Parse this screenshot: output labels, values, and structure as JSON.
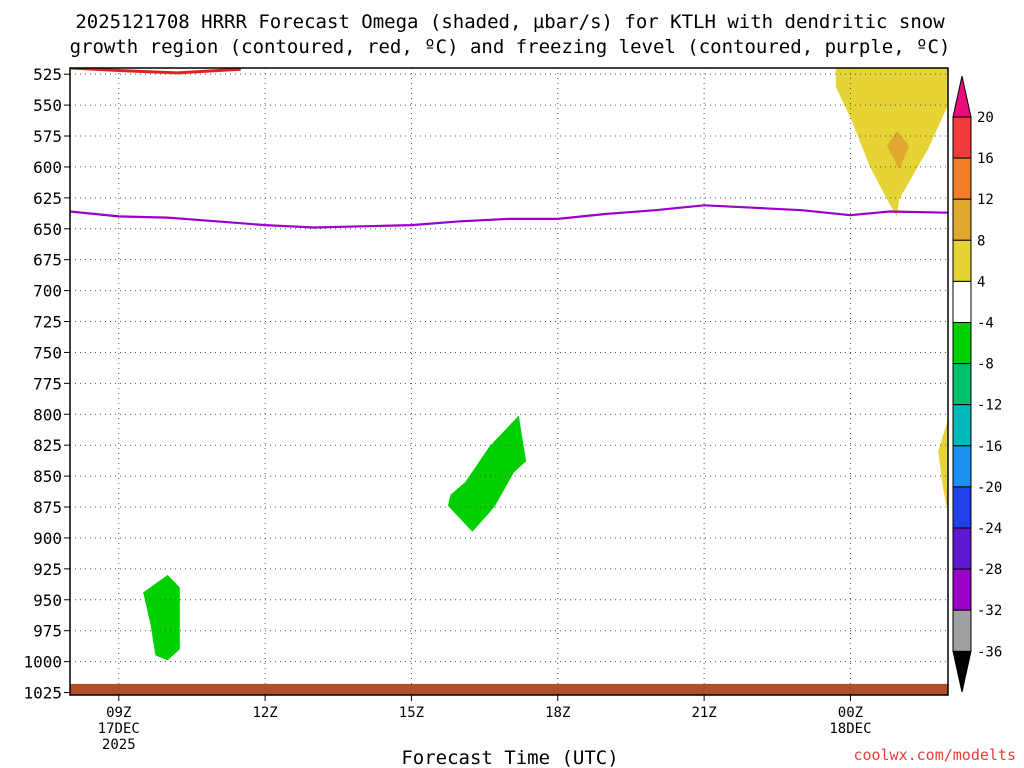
{
  "title_line1": "2025121708 HRRR Forecast Omega (shaded, µbar/s) for KTLH with dendritic snow",
  "title_line2": "growth region (contoured, red, ºC) and freezing level (contoured, purple, ºC)",
  "credit": "coolwx.com/modelts",
  "chart_data": {
    "type": "heatmap",
    "xlabel": "Forecast Time (UTC)",
    "ylabel": "",
    "x_range_hours": [
      8.0,
      26.0
    ],
    "y_levels_hpa": [
      525,
      550,
      575,
      600,
      625,
      650,
      675,
      700,
      725,
      750,
      775,
      800,
      825,
      850,
      875,
      900,
      925,
      950,
      975,
      1000,
      1025
    ],
    "y_range_hpa": [
      520,
      1027
    ],
    "x_ticks": [
      {
        "hour": 9,
        "lines": [
          "09Z",
          "17DEC",
          "2025"
        ]
      },
      {
        "hour": 12,
        "lines": [
          "12Z"
        ]
      },
      {
        "hour": 15,
        "lines": [
          "15Z"
        ]
      },
      {
        "hour": 18,
        "lines": [
          "18Z"
        ]
      },
      {
        "hour": 21,
        "lines": [
          "21Z"
        ]
      },
      {
        "hour": 24,
        "lines": [
          "00Z",
          "18DEC"
        ]
      }
    ],
    "colorbar": {
      "labels": [
        "20",
        "16",
        "12",
        "8",
        "4",
        "-4",
        "-8",
        "-12",
        "-16",
        "-20",
        "-24",
        "-28",
        "-32",
        "-36"
      ],
      "colors": [
        "#f23a3a",
        "#f07e2a",
        "#e0a82e",
        "#e6d336",
        "#ffffff",
        "#00d000",
        "#00c070",
        "#00b8b8",
        "#1c8ff0",
        "#2040e8",
        "#6018d0",
        "#9a00c8",
        "#a0a0a0"
      ],
      "top_color": "#e80c7c",
      "bottom_color": "#000000"
    },
    "freezing_level": {
      "color": "#9a00c8",
      "hours": [
        8.0,
        9.0,
        10.0,
        11.0,
        12.0,
        13.0,
        14.0,
        15.0,
        16.0,
        17.0,
        18.0,
        19.0,
        20.0,
        21.0,
        22.0,
        23.0,
        24.0,
        24.8,
        26.0
      ],
      "pressure": [
        636,
        640,
        641,
        644,
        647,
        649,
        648,
        647,
        644,
        642,
        642,
        638,
        635,
        631,
        633,
        635,
        639,
        636,
        637
      ]
    },
    "omega_regions": [
      {
        "value_range": [
          4,
          8
        ],
        "color": "#e6d336",
        "points": [
          [
            23.7,
            520
          ],
          [
            26.0,
            520
          ],
          [
            26.0,
            550
          ],
          [
            25.6,
            585
          ],
          [
            25.0,
            626
          ],
          [
            24.95,
            640
          ],
          [
            24.8,
            630
          ],
          [
            24.4,
            600
          ],
          [
            24.0,
            560
          ],
          [
            23.7,
            535
          ]
        ]
      },
      {
        "value_range": [
          8,
          12
        ],
        "color": "#e0a82e",
        "points": [
          [
            24.95,
            571
          ],
          [
            25.2,
            583
          ],
          [
            25.0,
            602
          ],
          [
            24.75,
            583
          ]
        ]
      },
      {
        "value_range": [
          4,
          8
        ],
        "color": "#e6d336",
        "points": [
          [
            26.0,
            804
          ],
          [
            25.8,
            830
          ],
          [
            25.9,
            860
          ],
          [
            26.0,
            880
          ]
        ]
      },
      {
        "value_range": [
          -8,
          -4
        ],
        "color": "#00d000",
        "points": [
          [
            16.1,
            855
          ],
          [
            16.6,
            826
          ],
          [
            17.2,
            801
          ],
          [
            17.35,
            838
          ],
          [
            17.1,
            847
          ],
          [
            16.7,
            875
          ],
          [
            16.25,
            895
          ],
          [
            15.75,
            874
          ],
          [
            15.8,
            865
          ]
        ]
      },
      {
        "value_range": [
          -8,
          -4
        ],
        "color": "#00d000",
        "points": [
          [
            9.5,
            944
          ],
          [
            10.0,
            930
          ],
          [
            10.25,
            940
          ],
          [
            10.25,
            990
          ],
          [
            10.0,
            999
          ],
          [
            9.75,
            995
          ],
          [
            9.65,
            970
          ]
        ]
      }
    ],
    "dgz_contours": [
      {
        "color": "#e22020",
        "points": [
          [
            8.0,
            520
          ],
          [
            9.0,
            522
          ],
          [
            10.2,
            524
          ],
          [
            11.5,
            521
          ]
        ]
      }
    ],
    "surface_band": {
      "color": "#b0502a",
      "from_hpa": 1018,
      "to_hpa": 1027
    }
  }
}
